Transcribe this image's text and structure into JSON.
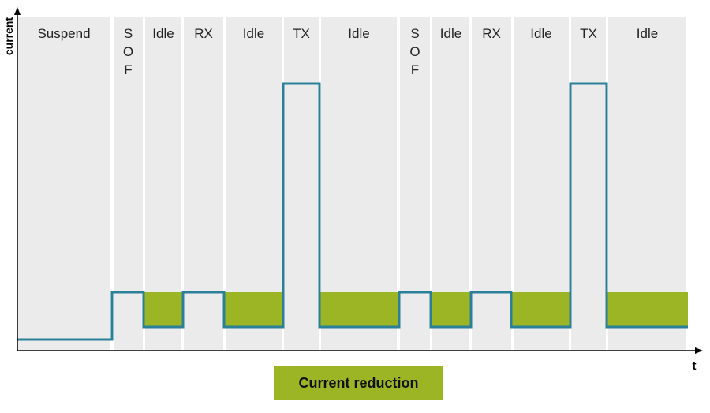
{
  "diagram": {
    "y_axis_label": "current",
    "x_axis_label": "t",
    "phases": [
      "Suspend",
      "S O F",
      "Idle",
      "RX",
      "Idle",
      "TX",
      "Idle",
      "S O F",
      "Idle",
      "RX",
      "Idle",
      "TX",
      "Idle"
    ],
    "legend": "Current reduction"
  }
}
